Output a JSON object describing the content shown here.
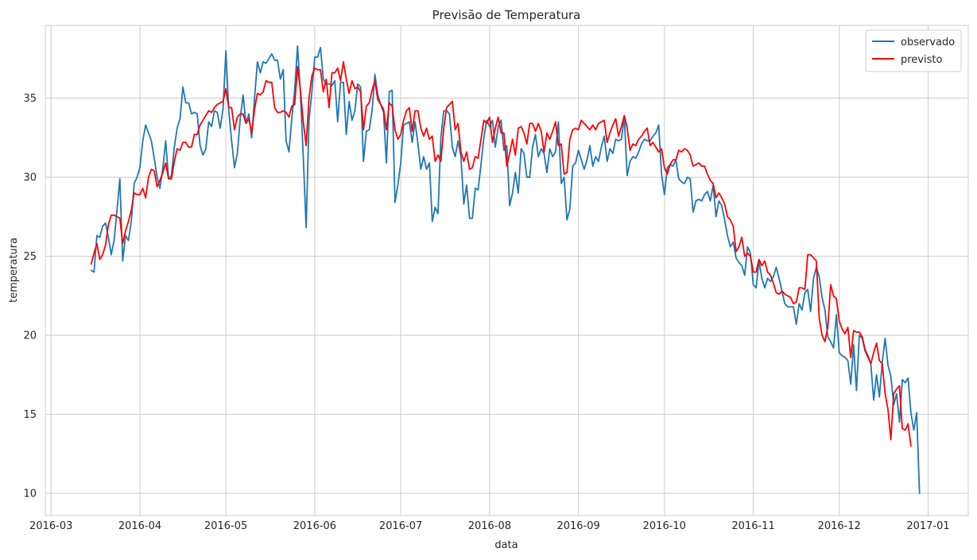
{
  "chart_data": {
    "type": "line",
    "title": "Previsão de Temperatura",
    "xlabel": "data",
    "ylabel": "temperatura",
    "x_tick_labels": [
      "2016-03",
      "2016-04",
      "2016-05",
      "2016-06",
      "2016-07",
      "2016-08",
      "2016-09",
      "2016-10",
      "2016-11",
      "2016-12",
      "2017-01"
    ],
    "x_tick_values": [
      "2016-03-01",
      "2016-04-01",
      "2016-05-01",
      "2016-06-01",
      "2016-07-01",
      "2016-08-01",
      "2016-09-01",
      "2016-10-01",
      "2016-11-01",
      "2016-12-01",
      "2017-01-01"
    ],
    "y_tick_labels": [
      "10",
      "15",
      "20",
      "25",
      "30",
      "35"
    ],
    "y_tick_values": [
      10,
      15,
      20,
      25,
      30,
      35
    ],
    "xlim": [
      "2016-02-28",
      "2017-01-15"
    ],
    "ylim": [
      8.6,
      39.6
    ],
    "grid": true,
    "legend_position": "top-right",
    "x_start_date": "2016-03-15",
    "series": [
      {
        "name": "observado",
        "color": "#1f77b4",
        "values": [
          24.1,
          24.0,
          26.3,
          26.2,
          26.9,
          27.1,
          26.2,
          25.1,
          26.0,
          27.9,
          29.9,
          24.7,
          26.3,
          26.0,
          27.2,
          29.6,
          30.0,
          30.6,
          32.3,
          33.3,
          32.8,
          32.3,
          31.2,
          30.0,
          29.3,
          30.6,
          32.3,
          29.9,
          30.1,
          31.9,
          33.1,
          33.7,
          35.7,
          34.7,
          34.7,
          34.0,
          34.1,
          34.0,
          32.0,
          31.4,
          31.8,
          33.5,
          33.2,
          34.2,
          34.1,
          33.1,
          34.3,
          38.0,
          34.2,
          32.3,
          30.6,
          31.5,
          33.7,
          35.2,
          33.4,
          34.0,
          32.5,
          35.0,
          37.3,
          36.6,
          37.3,
          37.2,
          37.5,
          37.8,
          37.4,
          37.4,
          36.2,
          36.8,
          32.3,
          31.6,
          33.7,
          35.5,
          38.3,
          35.3,
          31.3,
          26.8,
          33.6,
          35.4,
          37.6,
          37.6,
          38.2,
          36.2,
          35.9,
          35.9,
          35.8,
          36.1,
          33.5,
          36.0,
          36.0,
          32.7,
          34.8,
          33.6,
          34.2,
          35.9,
          35.7,
          31.0,
          32.9,
          33.0,
          34.2,
          36.5,
          35.2,
          34.6,
          34.1,
          30.9,
          35.4,
          35.5,
          28.4,
          29.5,
          30.9,
          33.3,
          33.4,
          33.5,
          32.2,
          33.5,
          32.1,
          30.5,
          31.3,
          30.5,
          30.9,
          27.2,
          28.1,
          27.7,
          32.5,
          34.2,
          34.2,
          34.0,
          31.9,
          31.3,
          32.3,
          31.3,
          28.3,
          29.5,
          27.4,
          27.4,
          29.3,
          29.2,
          30.8,
          32.5,
          33.6,
          33.2,
          33.6,
          31.9,
          33.2,
          33.6,
          31.7,
          32.0,
          28.2,
          29.0,
          30.3,
          29.0,
          31.8,
          31.5,
          30.0,
          30.0,
          31.9,
          32.7,
          31.3,
          31.8,
          31.5,
          30.3,
          31.8,
          31.3,
          31.6,
          33.5,
          29.6,
          30.0,
          27.3,
          28.0,
          30.7,
          30.9,
          31.7,
          31.1,
          30.5,
          31.1,
          32.0,
          30.7,
          31.3,
          31.0,
          31.9,
          32.6,
          31.0,
          31.8,
          31.5,
          32.4,
          32.3,
          32.4,
          33.8,
          30.1,
          31.0,
          31.3,
          31.2,
          31.6,
          32.1,
          32.4,
          32.3,
          32.3,
          32.6,
          32.8,
          33.3,
          30.2,
          28.9,
          30.6,
          30.8,
          30.7,
          31.1,
          29.9,
          29.7,
          29.6,
          30.0,
          29.9,
          27.8,
          28.5,
          28.6,
          28.5,
          28.9,
          29.1,
          28.5,
          29.5,
          27.5,
          28.5,
          28.2,
          27.3,
          26.3,
          25.6,
          25.9,
          24.9,
          24.6,
          24.4,
          23.8,
          25.6,
          25.2,
          23.2,
          23.0,
          24.7,
          23.6,
          23.0,
          23.6,
          23.4,
          23.7,
          24.3,
          23.6,
          22.8,
          22.0,
          21.8,
          21.8,
          21.8,
          20.7,
          22.0,
          21.6,
          22.7,
          22.9,
          21.5,
          23.6,
          24.3,
          23.7,
          22.4,
          21.6,
          19.9,
          19.6,
          19.2,
          21.3,
          18.9,
          18.7,
          18.6,
          18.4,
          16.9,
          19.4,
          16.5,
          20.0,
          19.8,
          19.0,
          18.6,
          18.2,
          15.9,
          17.5,
          16.1,
          18.3,
          19.8,
          18.1,
          17.4,
          15.6,
          16.3,
          14.5,
          17.2,
          17.0,
          17.3,
          15.1,
          14.0,
          15.1,
          10.0
        ]
      },
      {
        "name": "previsto",
        "color": "#ff0000",
        "values": [
          24.5,
          25.2,
          25.8,
          24.8,
          25.1,
          25.7,
          27.0,
          27.6,
          27.6,
          27.5,
          27.4,
          25.8,
          26.6,
          27.2,
          27.9,
          29.0,
          28.9,
          28.9,
          29.3,
          28.7,
          30.0,
          30.5,
          30.4,
          29.4,
          29.8,
          30.3,
          30.9,
          29.9,
          29.9,
          31.0,
          31.8,
          31.7,
          32.2,
          32.2,
          31.9,
          31.9,
          32.7,
          32.7,
          33.3,
          33.6,
          33.9,
          34.2,
          34.1,
          34.4,
          34.6,
          34.7,
          34.8,
          35.6,
          34.4,
          34.4,
          33.0,
          33.8,
          34.0,
          34.0,
          33.4,
          33.7,
          32.8,
          34.3,
          35.3,
          35.2,
          35.4,
          36.1,
          36.0,
          36.0,
          34.4,
          34.1,
          34.1,
          34.2,
          34.1,
          33.8,
          34.5,
          34.6,
          37.0,
          35.5,
          33.5,
          32.0,
          35.0,
          36.4,
          36.9,
          36.8,
          36.8,
          35.4,
          36.2,
          34.4,
          36.6,
          36.6,
          36.9,
          36.1,
          37.3,
          36.2,
          35.3,
          36.1,
          35.6,
          35.7,
          35.4,
          33.0,
          34.5,
          34.7,
          35.5,
          36.1,
          34.9,
          34.6,
          34.3,
          33.0,
          34.7,
          34.5,
          33.0,
          32.4,
          32.7,
          33.6,
          34.2,
          34.4,
          32.9,
          34.2,
          34.2,
          33.1,
          32.6,
          33.1,
          32.4,
          32.6,
          31.0,
          31.4,
          31.0,
          33.1,
          34.4,
          34.6,
          34.8,
          33.0,
          33.4,
          31.6,
          31.0,
          31.6,
          30.5,
          30.6,
          31.3,
          31.2,
          32.4,
          33.6,
          33.4,
          33.8,
          32.2,
          33.1,
          33.8,
          32.8,
          32.8,
          30.7,
          31.5,
          32.4,
          31.4,
          33.1,
          33.2,
          32.8,
          32.1,
          33.4,
          33.4,
          32.9,
          33.4,
          32.9,
          31.6,
          32.8,
          32.4,
          32.9,
          33.5,
          32.0,
          32.1,
          30.2,
          30.3,
          32.4,
          33.0,
          33.1,
          33.0,
          33.6,
          33.4,
          33.2,
          33.0,
          33.3,
          33.0,
          33.4,
          33.5,
          33.6,
          32.2,
          32.8,
          33.3,
          33.7,
          32.6,
          33.2,
          33.9,
          33.1,
          31.7,
          32.1,
          32.0,
          32.4,
          32.6,
          32.9,
          33.1,
          32.0,
          32.2,
          31.9,
          31.6,
          31.8,
          30.6,
          30.2,
          30.8,
          31.1,
          31.1,
          31.7,
          31.6,
          31.8,
          31.7,
          31.4,
          30.7,
          30.8,
          30.9,
          30.7,
          30.7,
          30.2,
          29.8,
          29.6,
          28.7,
          29.0,
          28.7,
          28.3,
          27.5,
          27.3,
          26.9,
          25.3,
          25.6,
          26.2,
          25.0,
          25.2,
          25.0,
          24.0,
          24.0,
          24.8,
          24.4,
          24.7,
          24.0,
          23.8,
          23.3,
          22.7,
          22.6,
          22.8,
          22.6,
          22.5,
          22.4,
          22.0,
          22.1,
          23.0,
          23.0,
          22.9,
          25.1,
          25.1,
          24.9,
          24.7,
          21.1,
          20.0,
          19.6,
          20.5,
          23.2,
          22.5,
          22.3,
          20.9,
          20.4,
          20.1,
          20.5,
          18.6,
          20.3,
          20.2,
          20.2,
          19.9,
          19.1,
          18.7,
          18.2,
          18.9,
          19.5,
          18.4,
          18.2,
          16.3,
          15.3,
          13.4,
          16.3,
          16.6,
          16.8,
          14.1,
          14.0,
          14.4,
          13.0
        ]
      }
    ]
  }
}
